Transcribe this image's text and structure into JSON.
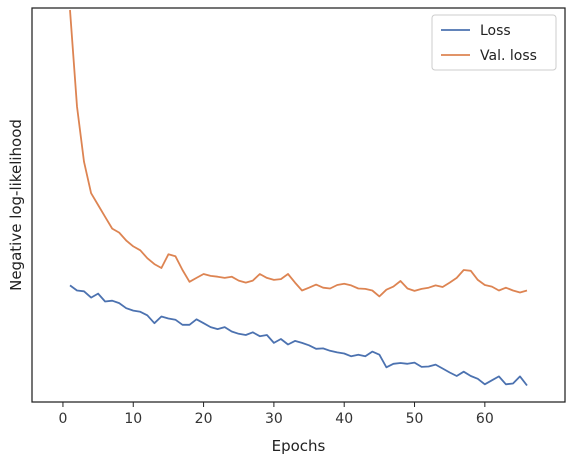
{
  "chart_data": {
    "type": "line",
    "xlabel": "Epochs",
    "ylabel": "Negative log-likelihood",
    "xlim": [
      -4.4,
      71.4
    ],
    "ylim": [
      0.0,
      1.0
    ],
    "xticks": [
      0,
      10,
      20,
      30,
      40,
      50,
      60
    ],
    "show_y_tick_labels": false,
    "grid": false,
    "legend": "top-right",
    "series": [
      {
        "name": "Loss",
        "color": "#4C72B0",
        "x": [
          1,
          2,
          3,
          4,
          5,
          6,
          7,
          8,
          9,
          10,
          11,
          12,
          13,
          14,
          15,
          16,
          17,
          18,
          19,
          20,
          21,
          22,
          23,
          24,
          25,
          26,
          27,
          28,
          29,
          30,
          31,
          32,
          33,
          34,
          35,
          36,
          37,
          38,
          39,
          40,
          41,
          42,
          43,
          44,
          45,
          46,
          47,
          48,
          49,
          50,
          51,
          52,
          53,
          54,
          55,
          56,
          57,
          58,
          59,
          60,
          61,
          62,
          63,
          64,
          65,
          66
        ],
        "values": [
          0.296,
          0.283,
          0.281,
          0.265,
          0.275,
          0.255,
          0.257,
          0.251,
          0.238,
          0.232,
          0.229,
          0.22,
          0.2,
          0.217,
          0.212,
          0.209,
          0.196,
          0.196,
          0.21,
          0.2,
          0.19,
          0.185,
          0.19,
          0.179,
          0.173,
          0.17,
          0.177,
          0.167,
          0.17,
          0.15,
          0.16,
          0.146,
          0.155,
          0.15,
          0.144,
          0.135,
          0.136,
          0.13,
          0.126,
          0.123,
          0.116,
          0.12,
          0.116,
          0.128,
          0.12,
          0.088,
          0.097,
          0.099,
          0.097,
          0.1,
          0.089,
          0.09,
          0.095,
          0.085,
          0.075,
          0.066,
          0.077,
          0.066,
          0.059,
          0.045,
          0.055,
          0.065,
          0.045,
          0.047,
          0.065,
          0.042
        ]
      },
      {
        "name": "Val. loss",
        "color": "#DD8452",
        "x": [
          1,
          2,
          3,
          4,
          5,
          6,
          7,
          8,
          9,
          10,
          11,
          12,
          13,
          14,
          15,
          16,
          17,
          18,
          19,
          20,
          21,
          22,
          23,
          24,
          25,
          26,
          27,
          28,
          29,
          30,
          31,
          32,
          33,
          34,
          35,
          36,
          37,
          38,
          39,
          40,
          41,
          42,
          43,
          44,
          45,
          46,
          47,
          48,
          49,
          50,
          51,
          52,
          53,
          54,
          55,
          56,
          57,
          58,
          59,
          60,
          61,
          62,
          63,
          64,
          65,
          66
        ],
        "values": [
          0.995,
          0.75,
          0.61,
          0.53,
          0.5,
          0.47,
          0.44,
          0.43,
          0.41,
          0.395,
          0.385,
          0.365,
          0.35,
          0.34,
          0.375,
          0.37,
          0.335,
          0.305,
          0.315,
          0.325,
          0.32,
          0.318,
          0.315,
          0.318,
          0.308,
          0.303,
          0.308,
          0.325,
          0.315,
          0.31,
          0.312,
          0.325,
          0.303,
          0.283,
          0.29,
          0.298,
          0.29,
          0.288,
          0.297,
          0.3,
          0.296,
          0.288,
          0.287,
          0.283,
          0.268,
          0.285,
          0.293,
          0.307,
          0.288,
          0.282,
          0.287,
          0.29,
          0.296,
          0.292,
          0.303,
          0.315,
          0.335,
          0.333,
          0.31,
          0.297,
          0.293,
          0.283,
          0.29,
          0.283,
          0.278,
          0.283
        ]
      }
    ]
  }
}
